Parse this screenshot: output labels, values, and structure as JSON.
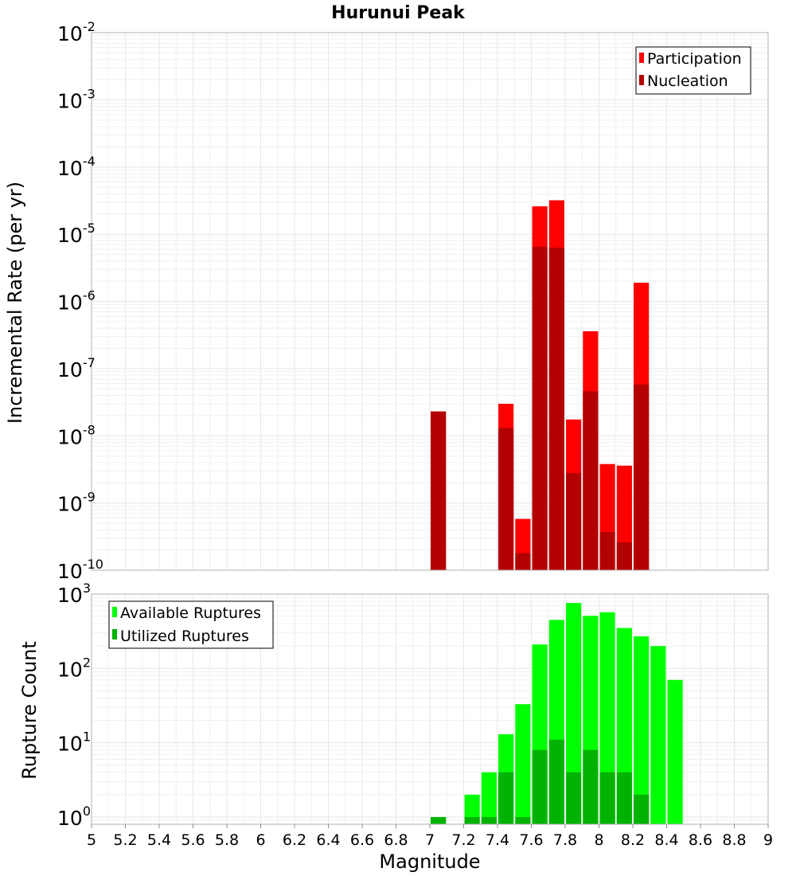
{
  "chart_data": [
    {
      "type": "bar",
      "title": "Hurunui Peak",
      "xlabel": "Magnitude",
      "ylabel": "Incremental Rate (per yr)",
      "xlim": [
        5,
        9
      ],
      "ylog": true,
      "ylim": [
        1e-10,
        0.01
      ],
      "legend_position": "top-right",
      "bar_width": 0.09,
      "series": [
        {
          "name": "Participation",
          "color": "#ff0000",
          "x": [
            7.05,
            7.45,
            7.55,
            7.65,
            7.75,
            7.85,
            7.95,
            8.05,
            8.15,
            8.25
          ],
          "values": [
            2.3e-08,
            3e-08,
            5.8e-10,
            2.6e-05,
            3.2e-05,
            1.75e-08,
            3.6e-07,
            3.8e-09,
            3.6e-09,
            1.9e-06
          ]
        },
        {
          "name": "Nucleation",
          "color": "#b30000",
          "x": [
            7.05,
            7.45,
            7.55,
            7.65,
            7.75,
            7.85,
            7.95,
            8.05,
            8.15,
            8.25
          ],
          "values": [
            2.3e-08,
            1.3e-08,
            1.8e-10,
            6.5e-06,
            6.3e-06,
            2.8e-09,
            4.6e-08,
            3.7e-10,
            2.6e-10,
            5.8e-08
          ]
        }
      ]
    },
    {
      "type": "bar",
      "xlabel": "Magnitude",
      "ylabel": "Rupture Count",
      "xlim": [
        5,
        9
      ],
      "ylog": true,
      "ylim": [
        0.8,
        1000
      ],
      "legend_position": "top-left",
      "bar_width": 0.09,
      "series": [
        {
          "name": "Available Ruptures",
          "color": "#00ff00",
          "x": [
            7.05,
            7.25,
            7.35,
            7.45,
            7.55,
            7.65,
            7.75,
            7.85,
            7.95,
            8.05,
            8.15,
            8.25,
            8.35,
            8.45
          ],
          "values": [
            1,
            2,
            4,
            13,
            33,
            210,
            450,
            760,
            510,
            570,
            350,
            270,
            200,
            70
          ]
        },
        {
          "name": "Utilized Ruptures",
          "color": "#00b300",
          "x": [
            7.05,
            7.25,
            7.35,
            7.45,
            7.55,
            7.65,
            7.75,
            7.85,
            7.95,
            8.05,
            8.15,
            8.25
          ],
          "values": [
            1,
            1,
            1,
            4,
            1,
            8,
            11,
            4,
            8,
            4,
            4,
            2
          ]
        }
      ]
    }
  ],
  "x_ticks": [
    "5",
    "5.2",
    "5.4",
    "5.6",
    "5.8",
    "6",
    "6.2",
    "6.4",
    "6.6",
    "6.8",
    "7",
    "7.2",
    "7.4",
    "7.6",
    "7.8",
    "8",
    "8.2",
    "8.4",
    "8.6",
    "8.8",
    "9"
  ],
  "top_y_ticks": [
    {
      "base": "10",
      "exp": "-10"
    },
    {
      "base": "10",
      "exp": "-9"
    },
    {
      "base": "10",
      "exp": "-8"
    },
    {
      "base": "10",
      "exp": "-7"
    },
    {
      "base": "10",
      "exp": "-6"
    },
    {
      "base": "10",
      "exp": "-5"
    },
    {
      "base": "10",
      "exp": "-4"
    },
    {
      "base": "10",
      "exp": "-3"
    },
    {
      "base": "10",
      "exp": "-2"
    }
  ],
  "bottom_y_ticks": [
    {
      "base": "10",
      "exp": "0"
    },
    {
      "base": "10",
      "exp": "1"
    },
    {
      "base": "10",
      "exp": "2"
    },
    {
      "base": "10",
      "exp": "3"
    }
  ]
}
